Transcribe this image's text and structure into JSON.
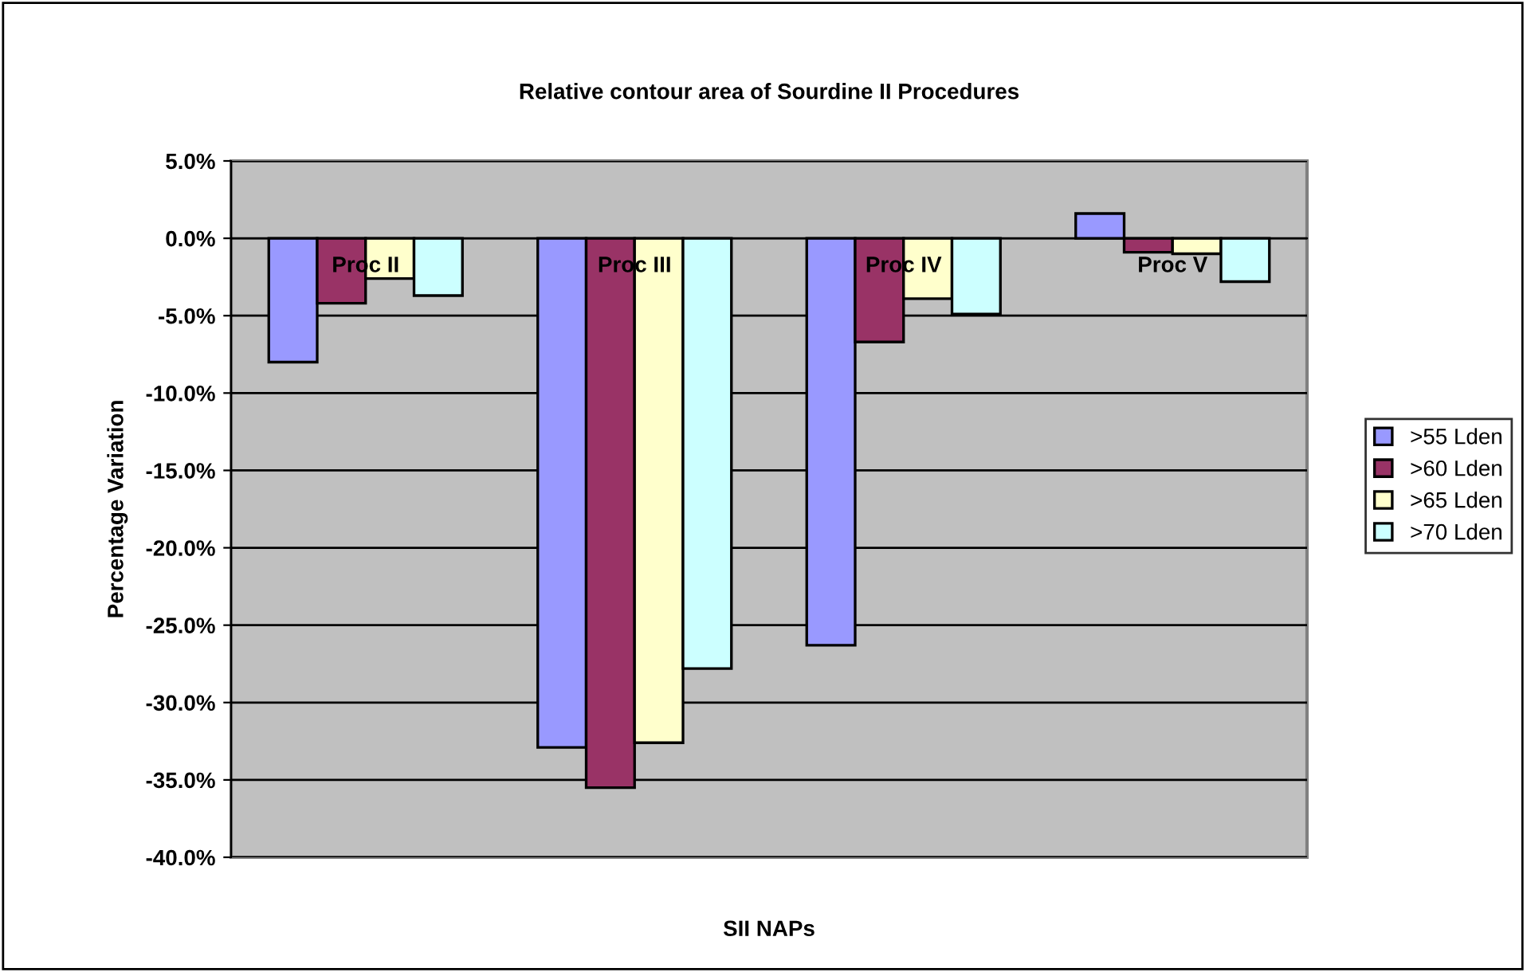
{
  "chart_data": {
    "type": "bar",
    "title": "Relative contour area of Sourdine II Procedures",
    "xlabel": "SII NAPs",
    "ylabel": "Percentage Variation",
    "categories": [
      "Proc II",
      "Proc III",
      "Proc IV",
      "Proc V"
    ],
    "series": [
      {
        "name": ">55 Lden",
        "color": "#9999ff",
        "values": [
          -8.0,
          -32.9,
          -26.3,
          1.6
        ]
      },
      {
        "name": ">60 Lden",
        "color": "#993366",
        "values": [
          -4.2,
          -35.5,
          -6.7,
          -0.9
        ]
      },
      {
        "name": ">65 Lden",
        "color": "#ffffcc",
        "values": [
          -2.6,
          -32.6,
          -3.9,
          -1.0
        ]
      },
      {
        "name": ">70 Lden",
        "color": "#ccffff",
        "values": [
          -3.7,
          -27.8,
          -4.9,
          -2.8
        ]
      }
    ],
    "ylim": [
      -40,
      5
    ],
    "yticks": [
      {
        "value": 5,
        "label": "5.0%"
      },
      {
        "value": 0,
        "label": "0.0%"
      },
      {
        "value": -5,
        "label": "-5.0%"
      },
      {
        "value": -10,
        "label": "-10.0%"
      },
      {
        "value": -15,
        "label": "-15.0%"
      },
      {
        "value": -20,
        "label": "-20.0%"
      },
      {
        "value": -25,
        "label": "-25.0%"
      },
      {
        "value": -30,
        "label": "-30.0%"
      },
      {
        "value": -35,
        "label": "-35.0%"
      },
      {
        "value": -40,
        "label": "-40.0%"
      }
    ],
    "grid": "y",
    "legend": "right"
  }
}
